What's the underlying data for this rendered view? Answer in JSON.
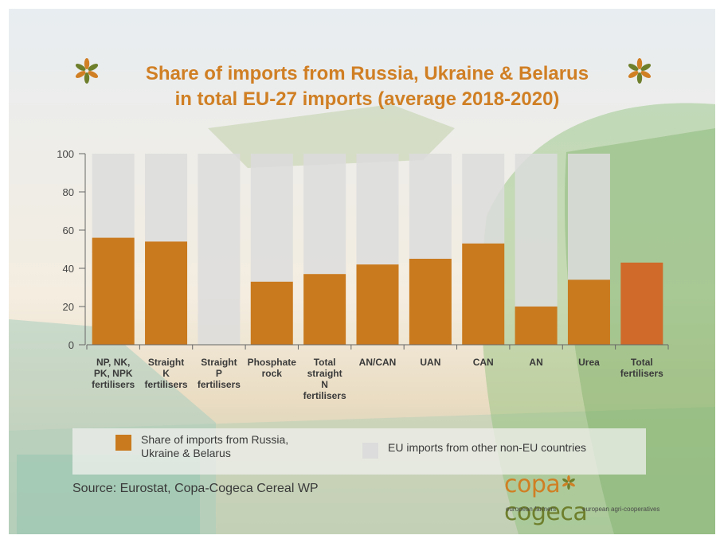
{
  "title": {
    "line1": "Share of imports from Russia, Ukraine & Belarus",
    "line2": "in total EU-27 imports (average 2018-2020)"
  },
  "colors": {
    "share": "#c97a1e",
    "share_total": "#cf6a2a",
    "other": "#dcdcdc",
    "title": "#d07f24"
  },
  "chart_data": {
    "type": "bar",
    "stacked": true,
    "ylim": [
      0,
      100
    ],
    "yticks": [
      "0",
      "20",
      "40",
      "60",
      "80",
      "100"
    ],
    "categories": [
      [
        "NP, NK,",
        "PK, NPK",
        "fertilisers"
      ],
      [
        "Straight",
        "K",
        "fertilisers"
      ],
      [
        "Straight",
        "P",
        "fertilisers"
      ],
      [
        "Phosphate",
        "rock"
      ],
      [
        "Total",
        "straight",
        "N",
        "fertilisers"
      ],
      [
        "AN/CAN"
      ],
      [
        "UAN"
      ],
      [
        "CAN"
      ],
      [
        "AN"
      ],
      [
        "Urea"
      ],
      [
        "Total",
        "fertilisers"
      ]
    ],
    "series": [
      {
        "name": "Share of imports from Russia, Ukraine & Belarus",
        "values": [
          56,
          54,
          0,
          33,
          37,
          42,
          45,
          53,
          20,
          34,
          43
        ]
      },
      {
        "name": "EU imports from other non-EU countries",
        "values": [
          44,
          46,
          100,
          67,
          63,
          58,
          55,
          47,
          80,
          66,
          0
        ]
      }
    ]
  },
  "legend": {
    "share_line1": "Share of imports from Russia,",
    "share_line2": "Ukraine & Belarus",
    "other": "EU imports from other non-EU countries"
  },
  "source": "Source: Eurostat, Copa-Cogeca Cereal WP",
  "logo": {
    "part1": "copa",
    "part2": "cogeca",
    "sub_left": "european farmers",
    "sub_right": "european agri-cooperatives"
  }
}
